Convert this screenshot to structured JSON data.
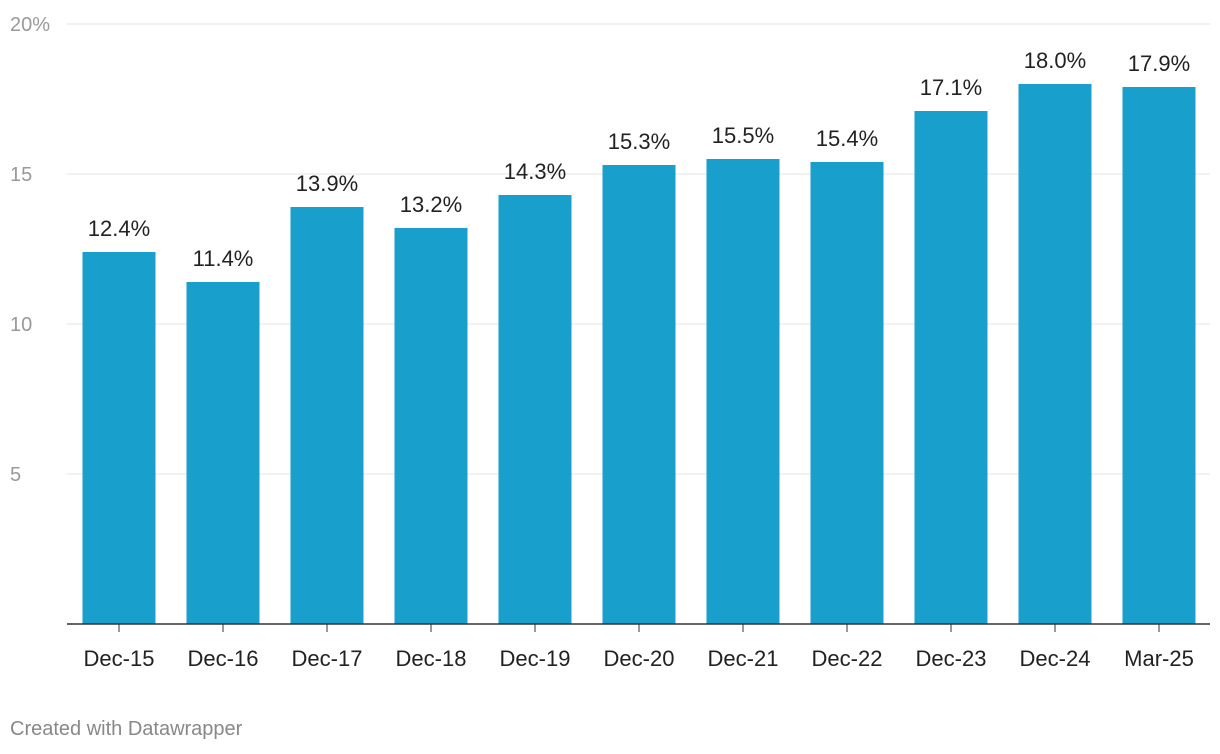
{
  "chart_data": {
    "type": "bar",
    "title": "",
    "xlabel": "",
    "ylabel": "",
    "categories": [
      "Dec-15",
      "Dec-16",
      "Dec-17",
      "Dec-18",
      "Dec-19",
      "Dec-20",
      "Dec-21",
      "Dec-22",
      "Dec-23",
      "Dec-24",
      "Mar-25"
    ],
    "values": [
      12.4,
      11.4,
      13.9,
      13.2,
      14.3,
      15.3,
      15.5,
      15.4,
      17.1,
      18.0,
      17.9
    ],
    "value_labels": [
      "12.4%",
      "11.4%",
      "13.9%",
      "13.2%",
      "14.3%",
      "15.3%",
      "15.5%",
      "15.4%",
      "17.1%",
      "18.0%",
      "17.9%"
    ],
    "ylim": [
      0,
      20
    ],
    "y_ticks": [
      5,
      10,
      15,
      20
    ],
    "y_tick_labels": [
      "5",
      "10",
      "15",
      "20%"
    ],
    "grid": true,
    "legend": "none",
    "bar_color": "#199fcc"
  },
  "footer": {
    "credit": "Created with Datawrapper"
  }
}
